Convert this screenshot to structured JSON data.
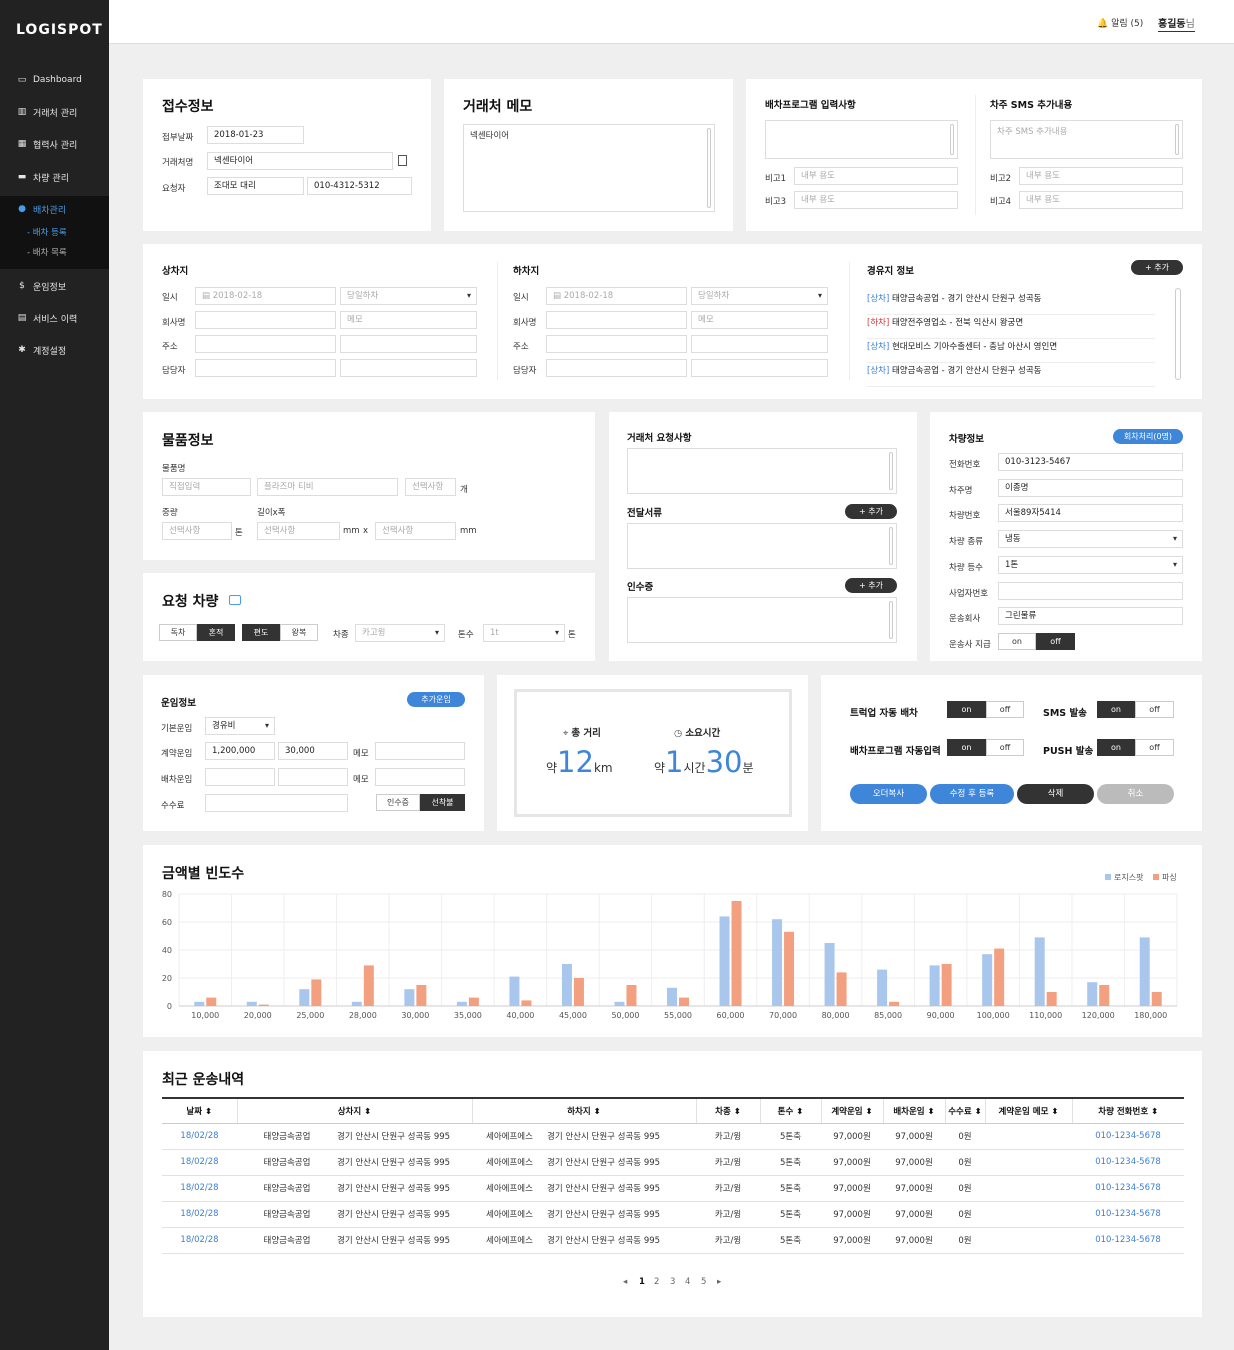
{
  "app": {
    "logo": "LOGISPOT"
  },
  "sidebar": {
    "items": [
      {
        "icon": "monitor-icon",
        "glyph": "▭",
        "label": "Dashboard"
      },
      {
        "icon": "building-icon",
        "glyph": "▥",
        "label": "거래처 관리"
      },
      {
        "icon": "buildings-icon",
        "glyph": "▦",
        "label": "협력사 관리"
      },
      {
        "icon": "truck-icon",
        "glyph": "▬",
        "label": "차량 관리"
      },
      {
        "icon": "pin-icon",
        "glyph": "●",
        "label": "배차관리"
      },
      {
        "icon": "dollar-icon",
        "glyph": "$",
        "label": "운임정보"
      },
      {
        "icon": "history-icon",
        "glyph": "▤",
        "label": "서비스 이력"
      },
      {
        "icon": "gear-icon",
        "glyph": "✱",
        "label": "계정설정"
      }
    ],
    "sub": [
      "- 배차 등록",
      "- 배차 목록"
    ]
  },
  "topbar": {
    "alarm": "알림 (5)",
    "user": "홍길동",
    "suffix": "님"
  },
  "intake": {
    "title": "접수정보",
    "label_date": "접부날짜",
    "date": "2018-01-23",
    "label_client": "거래처명",
    "client": "넥센타이어",
    "label_req": "요청자",
    "req_name": "조대모 대리",
    "req_phone": "010-4312-5312"
  },
  "memo": {
    "title": "거래처 메모",
    "text": "넥센타이어"
  },
  "dispatch_input": {
    "title": "배차프로그램 입력사항",
    "b1": "비고1",
    "b3": "비고3",
    "internal": "내부 용도"
  },
  "sms_extra": {
    "title": "차주 SMS 추가내용",
    "placeholder": "차주 SMS 추가내용",
    "b2": "비고2",
    "b4": "비고4",
    "internal": "내부 용도"
  },
  "loading": {
    "title": "상차지",
    "l_date": "일시",
    "date": "2018-02-18",
    "option": "당일하차",
    "l_company": "회사명",
    "memo_ph": "메모",
    "l_addr": "주소",
    "l_person": "담당자"
  },
  "unloading": {
    "title": "하차지",
    "l_date": "일시",
    "date": "2018-02-18",
    "option": "당일하차",
    "l_company": "회사명",
    "memo_ph": "메모",
    "l_addr": "주소",
    "l_person": "담당자"
  },
  "via": {
    "title": "경유지 정보",
    "add": "+ 추가",
    "items": [
      {
        "tag": "[상차]",
        "text": "태양금속공업 - 경기 안산시 단원구 성곡동"
      },
      {
        "tag": "[하차]",
        "text": "태양전주영업소 - 전북 익산시 왕궁면"
      },
      {
        "tag": "[상차]",
        "text": "현대모비스 기아수출센터 - 충남 아산시 영인면"
      },
      {
        "tag": "[상차]",
        "text": "태양금속공업 - 경기 안산시 단원구 성곡동"
      }
    ]
  },
  "goods": {
    "title": "물품정보",
    "l_name": "물품명",
    "direct": "직접입력",
    "item": "플라즈마 티비",
    "select": "선택사항",
    "unit_count": "개",
    "l_weight": "중량",
    "l_dims": "길이x폭",
    "unit_ton": "톤",
    "unit_mm": "mm",
    "x": "x"
  },
  "req_vehicle": {
    "title": "요청 차량",
    "excl": "독차",
    "mixed": "혼적",
    "oneway": "편도",
    "round": "왕복",
    "l_type": "차종",
    "type": "카고윙",
    "l_ton": "톤수",
    "ton": "1t",
    "unit_ton": "톤"
  },
  "client_req": {
    "title": "거래처 요청사항",
    "docs": "전달서류",
    "handover": "인수증",
    "add": "+ 추가"
  },
  "vehicle": {
    "title": "차량정보",
    "badge": "회차처리(0명)",
    "l_phone": "전화번호",
    "phone": "010-3123-5467",
    "l_owner": "차주명",
    "owner": "이종명",
    "l_plate": "차량번호",
    "plate": "서울89자5414",
    "l_kind": "차량 종류",
    "kind": "냉동",
    "l_grade": "차량 등수",
    "grade": "1톤",
    "l_biz": "사업자번호",
    "l_carrier": "운송회사",
    "carrier": "그린물류",
    "l_pay": "운송사 지급",
    "on": "on",
    "off": "off"
  },
  "fare": {
    "title": "운임정보",
    "add": "추가운임",
    "l_basic": "기본운임",
    "basic": "경유비",
    "l_contract": "계약운임",
    "contract": "1,200,000",
    "contract2": "30,000",
    "memo": "메모",
    "l_dispatch": "배차운임",
    "l_fee": "수수료",
    "receipt": "인수증",
    "prepaid": "선착불"
  },
  "route": {
    "dist_label": "총 거리",
    "dist_pre": "약",
    "dist": "12",
    "dist_unit": "km",
    "time_label": "소요시간",
    "time_pre": "약",
    "hours": "1",
    "hours_unit": "시간",
    "mins": "30",
    "mins_unit": "분"
  },
  "toggles": {
    "truckup": "트럭업 자동 배차",
    "program": "배차프로그램 자동입력",
    "sms": "SMS 발송",
    "push": "PUSH 발송",
    "on": "on",
    "off": "off"
  },
  "actions": {
    "copy": "오더복사",
    "save": "수정 후 등록",
    "delete": "삭제",
    "cancel": "취소"
  },
  "chart_data": {
    "type": "bar",
    "title": "금액별 빈도수",
    "categories": [
      "10,000",
      "20,000",
      "25,000",
      "28,000",
      "30,000",
      "35,000",
      "40,000",
      "45,000",
      "50,000",
      "55,000",
      "60,000",
      "70,000",
      "80,000",
      "85,000",
      "90,000",
      "100,000",
      "110,000",
      "120,000",
      "180,000"
    ],
    "series": [
      {
        "name": "로지스팟",
        "color": "#a9c7ec",
        "values": [
          3,
          3,
          12,
          3,
          12,
          3,
          21,
          30,
          3,
          13,
          64,
          62,
          45,
          26,
          29,
          37,
          49,
          17,
          49
        ]
      },
      {
        "name": "파싱",
        "color": "#f3a080",
        "values": [
          6,
          1,
          19,
          29,
          15,
          6,
          4,
          20,
          15,
          6,
          75,
          53,
          24,
          3,
          30,
          41,
          10,
          15,
          10
        ]
      }
    ],
    "ylim": [
      0,
      80
    ],
    "yticks": [
      0,
      20,
      40,
      60,
      80
    ],
    "legend": "top-right",
    "grid": true
  },
  "history": {
    "title": "최근 운송내역",
    "headers": [
      "날짜 ⬍",
      "상차지 ⬍",
      "하차지 ⬍",
      "차종 ⬍",
      "톤수 ⬍",
      "계약운임 ⬍",
      "배차운임 ⬍",
      "수수료 ⬍",
      "계약운임 메모 ⬍",
      "차량 전화번호 ⬍"
    ],
    "rows": [
      [
        "18/02/28",
        "태양금속공업",
        "경기 안산시 단원구 성곡동 995",
        "세아에프에스",
        "경기 안산시 단원구 성곡동 995",
        "카고/윙",
        "5톤축",
        "97,000원",
        "97,000원",
        "0원",
        "",
        "010-1234-5678"
      ],
      [
        "18/02/28",
        "태양금속공업",
        "경기 안산시 단원구 성곡동 995",
        "세아에프에스",
        "경기 안산시 단원구 성곡동 995",
        "카고/윙",
        "5톤축",
        "97,000원",
        "97,000원",
        "0원",
        "",
        "010-1234-5678"
      ],
      [
        "18/02/28",
        "태양금속공업",
        "경기 안산시 단원구 성곡동 995",
        "세아에프에스",
        "경기 안산시 단원구 성곡동 995",
        "카고/윙",
        "5톤축",
        "97,000원",
        "97,000원",
        "0원",
        "",
        "010-1234-5678"
      ],
      [
        "18/02/28",
        "태양금속공업",
        "경기 안산시 단원구 성곡동 995",
        "세아에프에스",
        "경기 안산시 단원구 성곡동 995",
        "카고/윙",
        "5톤축",
        "97,000원",
        "97,000원",
        "0원",
        "",
        "010-1234-5678"
      ],
      [
        "18/02/28",
        "태양금속공업",
        "경기 안산시 단원구 성곡동 995",
        "세아에프에스",
        "경기 안산시 단원구 성곡동 995",
        "카고/윙",
        "5톤축",
        "97,000원",
        "97,000원",
        "0원",
        "",
        "010-1234-5678"
      ]
    ],
    "pages": [
      "◂",
      "1",
      "2",
      "3",
      "4",
      "5",
      "▸"
    ]
  }
}
